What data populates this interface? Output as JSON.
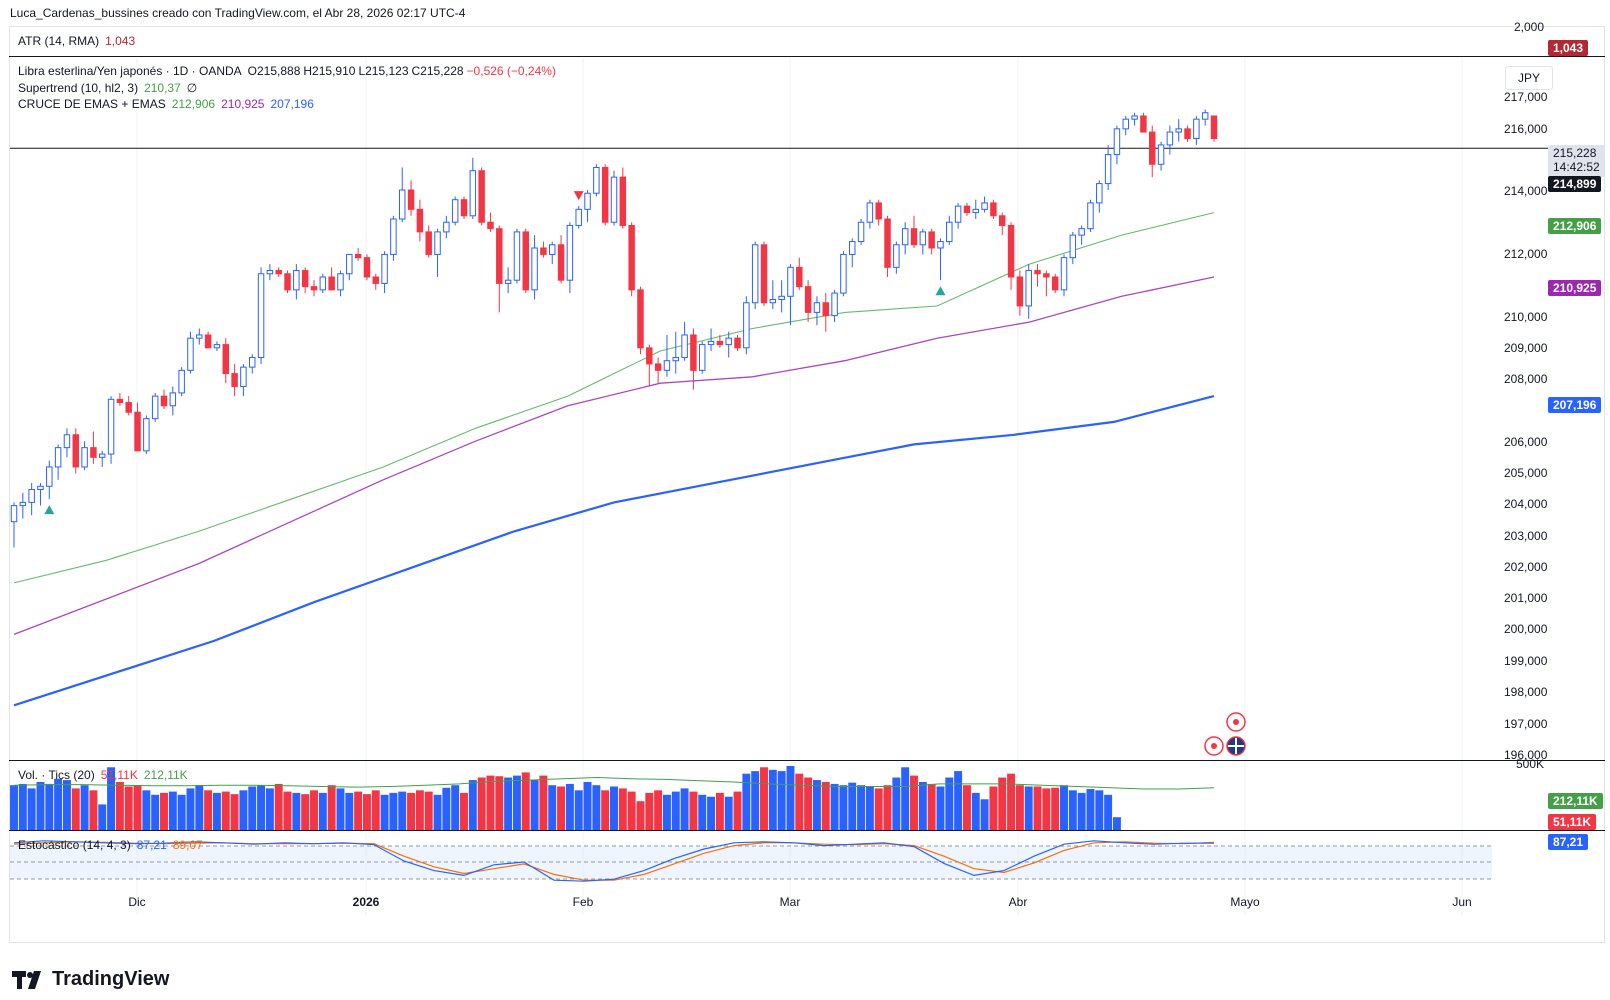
{
  "header": {
    "text": "Luca_Cardenas_bussines creado con TradingView.com, el Abr 28, 2026 02:17 UTC-4"
  },
  "atr": {
    "label": "ATR (14, RMA)",
    "value": "1,043",
    "color": "#b22833"
  },
  "main": {
    "symbol": "Libra esterlina/Yen japonés · 1D · OANDA",
    "ohlc": {
      "o": "O215,888",
      "h": "H215,910",
      "l": "L215,123",
      "c": "C215,228",
      "chg": "−0,526 (−0,24%)"
    },
    "supertrend": {
      "label": "Supertrend (10, hl2, 3)",
      "value": "210,37",
      "extra": "∅"
    },
    "emas": {
      "label": "CRUCE DE EMAS + EMAS",
      "v1": "212,906",
      "v2": "210,925",
      "v3": "207,196"
    },
    "currency": "JPY"
  },
  "volume": {
    "label": "Vol. · Tics (20)",
    "v1": "51,11K",
    "v2": "212,11K"
  },
  "stoch": {
    "label": "Estocástico (14, 4, 3)",
    "k": "87,21",
    "d": "89,07"
  },
  "badges": {
    "atr": {
      "text": "1,043",
      "color": "#b22833"
    },
    "price": {
      "text": "215,228",
      "sub": "14:42:52"
    },
    "hline": {
      "text": "214,899"
    },
    "ema1": {
      "text": "212,906",
      "color": "#43a047"
    },
    "ema2": {
      "text": "210,925",
      "color": "#9c27b0"
    },
    "ema3": {
      "text": "207,196",
      "color": "#2962ff"
    },
    "vol_ma": {
      "text": "212,11K",
      "color": "#43a047"
    },
    "vol": {
      "text": "51,11K",
      "color": "#f23645"
    },
    "stoch": {
      "text": "87,21",
      "color": "#2962ff"
    }
  },
  "yaxis": [
    "2,000",
    "217,000",
    "216,000",
    "214,000",
    "212,000",
    "210,000",
    "209,000",
    "208,000",
    "206,000",
    "205,000",
    "204,000",
    "203,000",
    "202,000",
    "201,000",
    "200,000",
    "199,000",
    "198,000",
    "197,000",
    "196,000",
    "500K"
  ],
  "xaxis": [
    {
      "label": "Dic",
      "x": 137
    },
    {
      "label": "2026",
      "x": 366
    },
    {
      "label": "Feb",
      "x": 583
    },
    {
      "label": "Mar",
      "x": 790
    },
    {
      "label": "Abr",
      "x": 1018
    },
    {
      "label": "Mayo",
      "x": 1245
    },
    {
      "label": "Jun",
      "x": 1462
    }
  ],
  "logo": {
    "text": "TradingView"
  },
  "chart_data": {
    "type": "candlestick",
    "title": "Libra esterlina/Yen japonés · 1D · OANDA",
    "ylim": [
      195.9,
      217.7
    ],
    "hline": 214.899,
    "colors": {
      "up": "#2962ff",
      "down": "#f23645",
      "ema1": "#66bb6a",
      "ema2": "#ab47bc",
      "ema3": "#2962ff"
    },
    "candles": [
      [
        203.3,
        203.9,
        202.5,
        203.8
      ],
      [
        203.8,
        204.2,
        203.4,
        203.9
      ],
      [
        203.9,
        204.5,
        203.5,
        204.3
      ],
      [
        204.3,
        204.5,
        203.8,
        204.4
      ],
      [
        204.4,
        205.2,
        204.0,
        205.0
      ],
      [
        205.0,
        205.7,
        204.6,
        205.6
      ],
      [
        205.6,
        206.2,
        205.3,
        206.0
      ],
      [
        206.0,
        206.2,
        204.8,
        205.0
      ],
      [
        205.0,
        205.8,
        204.9,
        205.6
      ],
      [
        205.6,
        206.1,
        205.1,
        205.3
      ],
      [
        205.3,
        205.5,
        205.0,
        205.4
      ],
      [
        205.4,
        207.2,
        205.1,
        207.1
      ],
      [
        207.1,
        207.3,
        206.9,
        207.0
      ],
      [
        207.0,
        207.2,
        206.6,
        206.7
      ],
      [
        206.7,
        207.0,
        205.6,
        205.5
      ],
      [
        205.5,
        206.6,
        205.4,
        206.5
      ],
      [
        206.5,
        207.3,
        206.4,
        207.2
      ],
      [
        207.2,
        207.4,
        206.8,
        206.9
      ],
      [
        206.9,
        207.5,
        206.6,
        207.3
      ],
      [
        207.3,
        208.1,
        207.2,
        208.0
      ],
      [
        208.0,
        209.2,
        207.9,
        209.0
      ],
      [
        209.0,
        209.3,
        208.8,
        209.1
      ],
      [
        209.1,
        209.2,
        208.7,
        208.7
      ],
      [
        208.7,
        208.9,
        208.6,
        208.8
      ],
      [
        208.8,
        209.0,
        207.6,
        207.9
      ],
      [
        207.9,
        208.2,
        207.2,
        207.5
      ],
      [
        207.5,
        208.2,
        207.2,
        208.1
      ],
      [
        208.1,
        208.5,
        207.9,
        208.4
      ],
      [
        208.4,
        211.2,
        208.2,
        211.0
      ],
      [
        211.0,
        211.3,
        210.8,
        211.1
      ],
      [
        211.1,
        211.2,
        210.9,
        211.0
      ],
      [
        211.0,
        211.1,
        210.4,
        210.5
      ],
      [
        210.5,
        211.3,
        210.2,
        211.1
      ],
      [
        211.1,
        211.2,
        210.4,
        210.6
      ],
      [
        210.6,
        210.8,
        210.3,
        210.5
      ],
      [
        210.5,
        211.0,
        210.4,
        210.9
      ],
      [
        210.9,
        211.2,
        210.6,
        210.5
      ],
      [
        210.5,
        211.1,
        210.3,
        211.0
      ],
      [
        211.0,
        211.6,
        210.8,
        211.6
      ],
      [
        211.6,
        211.8,
        211.4,
        211.5
      ],
      [
        211.5,
        211.6,
        210.8,
        210.9
      ],
      [
        210.9,
        211.0,
        210.5,
        210.7
      ],
      [
        210.7,
        211.7,
        210.4,
        211.6
      ],
      [
        211.6,
        212.8,
        211.4,
        212.7
      ],
      [
        212.7,
        214.3,
        212.6,
        213.6
      ],
      [
        213.6,
        213.9,
        212.8,
        213.0
      ],
      [
        213.0,
        213.3,
        212.0,
        212.3
      ],
      [
        212.3,
        212.5,
        211.5,
        211.6
      ],
      [
        211.6,
        212.4,
        210.9,
        212.3
      ],
      [
        212.3,
        212.8,
        212.1,
        212.6
      ],
      [
        212.6,
        213.4,
        212.5,
        213.3
      ],
      [
        213.3,
        213.4,
        212.7,
        212.8
      ],
      [
        212.8,
        214.6,
        212.7,
        214.2
      ],
      [
        214.2,
        214.3,
        212.5,
        212.6
      ],
      [
        212.6,
        212.9,
        212.3,
        212.4
      ],
      [
        212.4,
        212.5,
        209.8,
        210.7
      ],
      [
        210.7,
        211.2,
        210.4,
        210.8
      ],
      [
        210.8,
        212.4,
        210.7,
        212.3
      ],
      [
        212.3,
        212.4,
        210.4,
        210.5
      ],
      [
        210.5,
        212.2,
        210.2,
        211.8
      ],
      [
        211.8,
        212.0,
        211.5,
        211.6
      ],
      [
        211.6,
        212.0,
        211.3,
        211.9
      ],
      [
        211.9,
        212.2,
        210.7,
        210.8
      ],
      [
        210.8,
        212.6,
        210.4,
        212.5
      ],
      [
        212.5,
        213.1,
        212.4,
        213.0
      ],
      [
        213.0,
        213.6,
        212.6,
        213.5
      ],
      [
        213.5,
        214.4,
        213.4,
        214.3
      ],
      [
        214.3,
        214.4,
        212.5,
        212.6
      ],
      [
        212.6,
        214.2,
        212.5,
        214.0
      ],
      [
        214.0,
        214.3,
        212.4,
        212.5
      ],
      [
        212.5,
        212.6,
        210.3,
        210.5
      ],
      [
        210.5,
        210.6,
        208.5,
        208.7
      ],
      [
        208.7,
        208.8,
        207.5,
        208.2
      ],
      [
        208.2,
        208.4,
        207.6,
        208.0
      ],
      [
        208.0,
        209.1,
        207.8,
        208.3
      ],
      [
        208.3,
        209.2,
        207.9,
        208.4
      ],
      [
        208.4,
        209.5,
        208.3,
        209.1
      ],
      [
        209.1,
        209.3,
        207.4,
        208.0
      ],
      [
        208.0,
        208.9,
        207.9,
        208.8
      ],
      [
        208.8,
        209.3,
        208.6,
        208.9
      ],
      [
        208.9,
        209.1,
        208.7,
        208.8
      ],
      [
        208.8,
        209.2,
        208.4,
        209.0
      ],
      [
        209.0,
        209.1,
        208.6,
        208.7
      ],
      [
        208.7,
        210.3,
        208.5,
        210.1
      ],
      [
        210.1,
        212.0,
        209.9,
        211.9
      ],
      [
        211.9,
        212.0,
        210.0,
        210.1
      ],
      [
        210.1,
        210.8,
        209.9,
        210.2
      ],
      [
        210.2,
        210.8,
        209.8,
        210.3
      ],
      [
        210.3,
        211.3,
        209.4,
        211.2
      ],
      [
        211.2,
        211.5,
        210.5,
        210.6
      ],
      [
        210.6,
        210.8,
        209.5,
        209.8
      ],
      [
        209.8,
        210.3,
        209.4,
        210.1
      ],
      [
        210.1,
        210.4,
        209.2,
        209.7
      ],
      [
        209.7,
        210.5,
        209.5,
        210.4
      ],
      [
        210.4,
        211.7,
        210.3,
        211.6
      ],
      [
        211.6,
        212.1,
        211.2,
        212.0
      ],
      [
        212.0,
        212.7,
        211.9,
        212.6
      ],
      [
        212.6,
        213.3,
        212.4,
        213.2
      ],
      [
        213.2,
        213.3,
        212.5,
        212.7
      ],
      [
        212.7,
        212.8,
        210.9,
        211.2
      ],
      [
        211.2,
        212.0,
        211.0,
        211.9
      ],
      [
        211.9,
        212.6,
        211.6,
        212.4
      ],
      [
        212.4,
        212.8,
        211.8,
        211.9
      ],
      [
        211.9,
        212.4,
        211.6,
        212.3
      ],
      [
        212.3,
        212.4,
        211.6,
        211.8
      ],
      [
        211.8,
        212.1,
        210.8,
        212.0
      ],
      [
        212.0,
        212.8,
        211.9,
        212.6
      ],
      [
        212.6,
        213.2,
        212.4,
        213.1
      ],
      [
        213.1,
        213.2,
        212.8,
        212.9
      ],
      [
        212.9,
        213.3,
        212.7,
        213.0
      ],
      [
        213.0,
        213.4,
        212.9,
        213.2
      ],
      [
        213.2,
        213.3,
        212.7,
        212.8
      ],
      [
        212.8,
        212.9,
        212.2,
        212.5
      ],
      [
        212.5,
        212.6,
        210.5,
        210.9
      ],
      [
        210.9,
        211.1,
        209.7,
        210.0
      ],
      [
        210.0,
        211.3,
        209.6,
        211.1
      ],
      [
        211.1,
        211.3,
        210.6,
        211.0
      ],
      [
        211.0,
        211.1,
        210.3,
        210.9
      ],
      [
        210.9,
        211.0,
        210.4,
        210.5
      ],
      [
        210.5,
        211.6,
        210.3,
        211.5
      ],
      [
        211.5,
        212.3,
        211.3,
        212.2
      ],
      [
        212.2,
        212.5,
        211.9,
        212.4
      ],
      [
        212.4,
        213.3,
        212.3,
        213.2
      ],
      [
        213.2,
        213.9,
        212.9,
        213.8
      ],
      [
        213.8,
        215.0,
        213.6,
        214.7
      ],
      [
        214.7,
        215.6,
        214.4,
        215.5
      ],
      [
        215.5,
        215.9,
        215.3,
        215.8
      ],
      [
        215.8,
        216.0,
        215.6,
        215.9
      ],
      [
        215.9,
        216.0,
        215.4,
        215.4
      ],
      [
        215.4,
        215.6,
        214.0,
        214.4
      ],
      [
        214.4,
        215.1,
        214.2,
        215.0
      ],
      [
        215.0,
        215.6,
        214.7,
        215.4
      ],
      [
        215.4,
        215.8,
        215.1,
        215.5
      ],
      [
        215.5,
        215.6,
        215.1,
        215.2
      ],
      [
        215.2,
        215.9,
        215.0,
        215.8
      ],
      [
        215.8,
        216.1,
        215.6,
        216.0
      ],
      [
        215.9,
        215.9,
        215.1,
        215.2
      ]
    ],
    "ema1": [
      201.4,
      202.1,
      203.0,
      204.0,
      205.0,
      206.2,
      207.2,
      208.6,
      209.3,
      209.8,
      210.0,
      211.3,
      212.2,
      212.9
    ],
    "ema2": [
      199.8,
      200.9,
      202.0,
      203.3,
      204.6,
      205.8,
      206.9,
      207.6,
      207.8,
      208.3,
      209.0,
      209.5,
      210.3,
      210.9
    ],
    "ema3": [
      197.6,
      198.6,
      199.6,
      200.8,
      201.9,
      203.0,
      203.9,
      204.5,
      205.1,
      205.7,
      206.0,
      206.4,
      207.2
    ],
    "supertrend_signals": [
      {
        "i": 4,
        "type": "buy"
      },
      {
        "i": 64,
        "type": "sell"
      },
      {
        "i": 105,
        "type": "buy"
      }
    ],
    "volume": [
      70,
      72,
      65,
      75,
      72,
      80,
      78,
      65,
      70,
      62,
      40,
      98,
      75,
      68,
      70,
      62,
      55,
      58,
      60,
      55,
      65,
      70,
      62,
      58,
      60,
      56,
      62,
      68,
      70,
      65,
      72,
      60,
      58,
      56,
      62,
      58,
      70,
      65,
      58,
      60,
      56,
      62,
      55,
      58,
      60,
      58,
      62,
      60,
      55,
      66,
      70,
      58,
      78,
      82,
      85,
      84,
      82,
      85,
      90,
      78,
      85,
      70,
      68,
      72,
      62,
      75,
      70,
      62,
      68,
      65,
      60,
      45,
      58,
      62,
      55,
      60,
      65,
      60,
      55,
      52,
      58,
      52,
      60,
      88,
      92,
      98,
      94,
      92,
      100,
      88,
      82,
      78,
      75,
      72,
      70,
      74,
      70,
      68,
      65,
      70,
      82,
      98,
      85,
      75,
      72,
      68,
      82,
      92,
      70,
      58,
      48,
      68,
      82,
      88,
      70,
      68,
      68,
      65,
      66,
      70,
      62,
      58,
      64,
      62,
      55,
      20
    ],
    "volume_ma": [
      70,
      71,
      71,
      70,
      69,
      69,
      70,
      70,
      69,
      68,
      67,
      68,
      70,
      72,
      76,
      78,
      80,
      82,
      80,
      79,
      77,
      75,
      72,
      70,
      68,
      68,
      68,
      72,
      72,
      72,
      70,
      68,
      66,
      64,
      64,
      66
    ],
    "stochastic_k": [
      88,
      92,
      90,
      88,
      86,
      87,
      90,
      88,
      85,
      88,
      86,
      88,
      84,
      50,
      30,
      20,
      42,
      48,
      10,
      8,
      12,
      30,
      55,
      75,
      88,
      90,
      88,
      82,
      85,
      88,
      80,
      45,
      20,
      30,
      60,
      85,
      92,
      88,
      85,
      87,
      87
    ],
    "stochastic_d": [
      85,
      88,
      90,
      89,
      87,
      86,
      87,
      88,
      86,
      86,
      86,
      87,
      86,
      60,
      38,
      24,
      34,
      44,
      22,
      10,
      10,
      22,
      44,
      66,
      82,
      88,
      88,
      85,
      84,
      86,
      82,
      60,
      34,
      26,
      46,
      72,
      88,
      90,
      87,
      86,
      89
    ]
  }
}
